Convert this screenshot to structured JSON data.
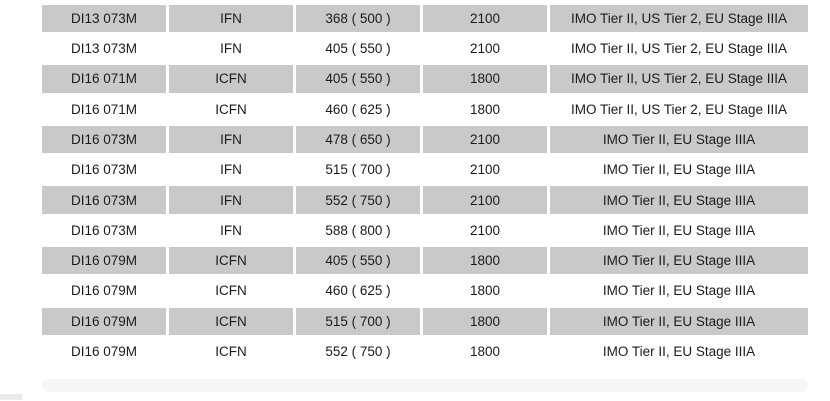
{
  "table": {
    "rows": [
      {
        "cells": [
          "DI13 073M",
          "IFN",
          "368 ( 500 )",
          "2100",
          "IMO Tier II, US Tier 2, EU Stage IIIA"
        ]
      },
      {
        "cells": [
          "DI13 073M",
          "IFN",
          "405 ( 550 )",
          "2100",
          "IMO Tier II, US Tier 2, EU Stage IIIA"
        ]
      },
      {
        "cells": [
          "DI16 071M",
          "ICFN",
          "405 ( 550 )",
          "1800",
          "IMO Tier II, US Tier 2, EU Stage IIIA"
        ]
      },
      {
        "cells": [
          "DI16 071M",
          "ICFN",
          "460 ( 625 )",
          "1800",
          "IMO Tier II, US Tier 2, EU Stage IIIA"
        ]
      },
      {
        "cells": [
          "DI16 073M",
          "IFN",
          "478 ( 650 )",
          "2100",
          "IMO Tier II, EU Stage IIIA"
        ]
      },
      {
        "cells": [
          "DI16 073M",
          "IFN",
          "515 ( 700 )",
          "2100",
          "IMO Tier II, EU Stage IIIA"
        ]
      },
      {
        "cells": [
          "DI16 073M",
          "IFN",
          "552 ( 750 )",
          "2100",
          "IMO Tier II, EU Stage IIIA"
        ]
      },
      {
        "cells": [
          "DI16 073M",
          "IFN",
          "588 ( 800 )",
          "2100",
          "IMO Tier II, EU Stage IIIA"
        ]
      },
      {
        "cells": [
          "DI16 079M",
          "ICFN",
          "405 ( 550 )",
          "1800",
          "IMO Tier II, EU Stage IIIA"
        ]
      },
      {
        "cells": [
          "DI16 079M",
          "ICFN",
          "460 ( 625 )",
          "1800",
          "IMO Tier II, EU Stage IIIA"
        ]
      },
      {
        "cells": [
          "DI16 079M",
          "ICFN",
          "515 ( 700 )",
          "1800",
          "IMO Tier II, EU Stage IIIA"
        ]
      },
      {
        "cells": [
          "DI16 079M",
          "ICFN",
          "552 ( 750 )",
          "1800",
          "IMO Tier II, EU Stage IIIA"
        ]
      }
    ]
  },
  "colors": {
    "stripe_row_background": "#c8c9c8",
    "text": "#1b1b1b",
    "page_background": "#ffffff"
  }
}
